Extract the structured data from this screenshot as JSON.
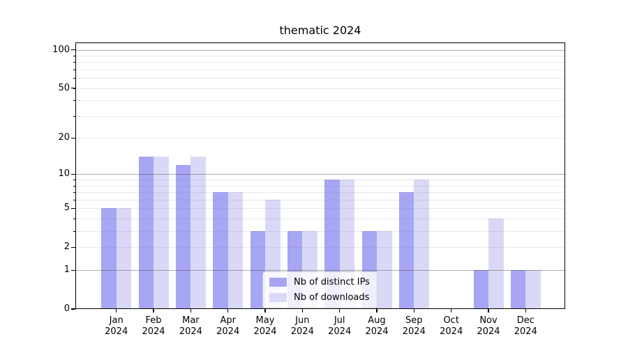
{
  "title": "thematic 2024",
  "legend": {
    "items": [
      {
        "label": "Nb of distinct IPs",
        "color": "#a6a6f4"
      },
      {
        "label": "Nb of downloads",
        "color": "#d9d9f7"
      }
    ]
  },
  "chart_data": {
    "type": "bar",
    "title": "thematic 2024",
    "categories": [
      "Jan",
      "Feb",
      "Mar",
      "Apr",
      "May",
      "Jun",
      "Jul",
      "Aug",
      "Sep",
      "Oct",
      "Nov",
      "Dec"
    ],
    "category_year": "2024",
    "series": [
      {
        "name": "Nb of distinct IPs",
        "color": "#a6a6f4",
        "values": [
          5,
          14,
          12,
          7,
          3,
          3,
          9,
          3,
          7,
          0,
          1,
          1
        ]
      },
      {
        "name": "Nb of downloads",
        "color": "#d9d9f7",
        "values": [
          5,
          14,
          14,
          7,
          6,
          3,
          9,
          3,
          9,
          0,
          4,
          1
        ]
      }
    ],
    "yscale": "log1p",
    "ylim": [
      0,
      114
    ],
    "y_tick_values": [
      0,
      1,
      2,
      5,
      10,
      20,
      50,
      100
    ],
    "y_major_gridlines": [
      1,
      10,
      100
    ],
    "y_minor_gridlines": [
      2,
      3,
      4,
      5,
      6,
      7,
      8,
      9,
      20,
      30,
      40,
      50,
      60,
      70,
      80,
      90
    ],
    "grid": true,
    "legend_position": "lower-center-inside",
    "xlabel": "",
    "ylabel": ""
  },
  "colors": {
    "background": "#ffffff",
    "bar_distinct_ips": "#a6a6f4",
    "bar_downloads": "#d9d9f7",
    "grid_major": "#b0b0b0",
    "grid_minor": "#e8e8e8",
    "spine": "#000000",
    "text": "#000000"
  }
}
